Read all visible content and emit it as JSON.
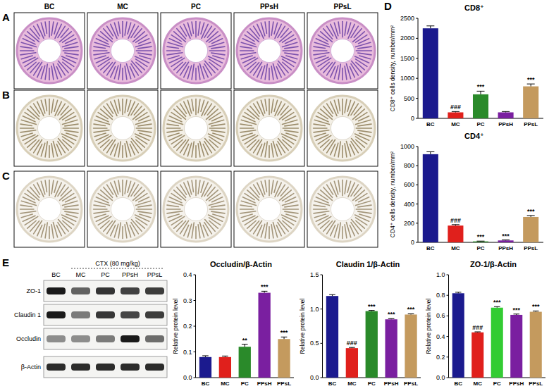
{
  "panel_labels": [
    "A",
    "B",
    "C",
    "D",
    "E"
  ],
  "histology_columns": [
    "BC",
    "MC",
    "PC",
    "PPsH",
    "PPsL"
  ],
  "blot": {
    "treatment": "CTX (80 mg/kg)",
    "columns": [
      "BC",
      "MC",
      "PC",
      "PPsH",
      "PPsL"
    ],
    "rows": [
      "ZO-1",
      "Claudin 1",
      "Occludin",
      "β-Actin"
    ]
  },
  "chart_data": [
    {
      "type": "bar",
      "title": "CD8⁺",
      "y_label": "CD8⁺ cells density, number/mm²",
      "categories": [
        "BC",
        "MC",
        "PC",
        "PPsH",
        "PPsL"
      ],
      "values": [
        2250,
        150,
        600,
        150,
        800
      ],
      "errors": [
        60,
        20,
        80,
        20,
        60
      ],
      "annotations": [
        null,
        "###",
        "***",
        null,
        "***"
      ],
      "colors": [
        "#1b1a8e",
        "#e0201c",
        "#2a8a2a",
        "#7a1fa0",
        "#c49a5e"
      ],
      "ylim": [
        0,
        2500
      ],
      "yticks": [
        0,
        500,
        1000,
        1500,
        2000,
        2500
      ]
    },
    {
      "type": "bar",
      "title": "CD4⁺",
      "y_label": "CD4⁺ cells density, number/mm²",
      "categories": [
        "BC",
        "MC",
        "PC",
        "PPsH",
        "PPsL"
      ],
      "values": [
        920,
        175,
        10,
        20,
        265
      ],
      "errors": [
        25,
        10,
        3,
        5,
        15
      ],
      "annotations": [
        null,
        "###",
        "***",
        "***",
        "***"
      ],
      "colors": [
        "#1b1a8e",
        "#e0201c",
        "#2a8a2a",
        "#7a1fa0",
        "#c49a5e"
      ],
      "ylim": [
        0,
        1000
      ],
      "yticks": [
        0,
        200,
        400,
        600,
        800,
        1000
      ]
    },
    {
      "type": "bar",
      "title": "Occludin/β-Actin",
      "y_label": "Relative protein level",
      "categories": [
        "BC",
        "MC",
        "PC",
        "PPsH",
        "PPsL"
      ],
      "values": [
        0.08,
        0.08,
        0.12,
        0.33,
        0.15
      ],
      "errors": [
        0.005,
        0.004,
        0.01,
        0.006,
        0.008
      ],
      "annotations": [
        null,
        null,
        "**",
        "***",
        "***"
      ],
      "colors": [
        "#1b1a8e",
        "#e0201c",
        "#2a8a2a",
        "#7a1fa0",
        "#c49a5e"
      ],
      "ylim": [
        0,
        0.4
      ],
      "yticks": [
        {
          "value": 0,
          "label": "0.0"
        },
        0.1,
        0.2,
        0.3,
        0.4
      ]
    },
    {
      "type": "bar",
      "title": "Claudin 1/β-Actin",
      "y_label": "Relative protein level",
      "categories": [
        "BC",
        "MC",
        "PC",
        "PPsH",
        "PPsL"
      ],
      "values": [
        1.19,
        0.43,
        0.97,
        0.85,
        0.92
      ],
      "errors": [
        0.02,
        0.01,
        0.01,
        0.01,
        0.01
      ],
      "annotations": [
        null,
        "###",
        "***",
        "***",
        "***"
      ],
      "colors": [
        "#1b1a8e",
        "#e0201c",
        "#2a8a2a",
        "#7a1fa0",
        "#c49a5e"
      ],
      "ylim": [
        0,
        1.5
      ],
      "yticks": [
        {
          "value": 0,
          "label": "0.0"
        },
        0.5,
        {
          "value": 1,
          "label": "1.0"
        },
        1.5
      ]
    },
    {
      "type": "bar",
      "title": "ZO-1/β-Actin",
      "y_label": "Relative protein level",
      "categories": [
        "BC",
        "MC",
        "PC",
        "PPsH",
        "PPsL"
      ],
      "values": [
        0.82,
        0.44,
        0.68,
        0.61,
        0.64
      ],
      "errors": [
        0.01,
        0.005,
        0.01,
        0.008,
        0.008
      ],
      "annotations": [
        null,
        "###",
        "***",
        "***",
        "***"
      ],
      "colors": [
        "#1b1a8e",
        "#e0201c",
        "#33cc33",
        "#7a1fa0",
        "#c49a5e"
      ],
      "ylim": [
        0,
        1
      ],
      "yticks": [
        {
          "value": 0,
          "label": "0.0"
        },
        0.2,
        0.4,
        0.6,
        0.8,
        {
          "value": 1,
          "label": "1.0"
        }
      ]
    }
  ]
}
